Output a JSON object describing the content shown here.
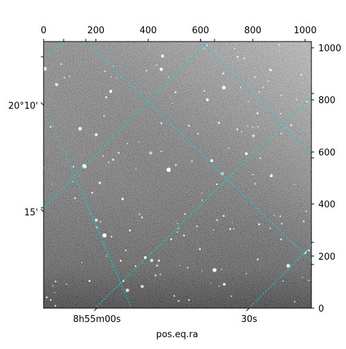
{
  "chart_data": {
    "type": "image",
    "xlabel": "pos.eq.ra",
    "ylabel": "",
    "pixel_axis_x": {
      "range": [
        0,
        1024
      ],
      "ticks": [
        0,
        200,
        400,
        600,
        800,
        1000
      ]
    },
    "pixel_axis_y": {
      "range": [
        0,
        1024
      ],
      "ticks": [
        0,
        200,
        400,
        600,
        800,
        1000
      ]
    },
    "ra_ticks": [
      {
        "label": "8h55m00s",
        "value": 0
      },
      {
        "label": "30s",
        "value": 30
      }
    ],
    "dec_ticks": [
      {
        "label": "20°10'",
        "value": 10
      },
      {
        "label": "15'",
        "value": 15
      }
    ],
    "grid": true,
    "grid_color": "#00dddd",
    "colormap": "gray"
  }
}
